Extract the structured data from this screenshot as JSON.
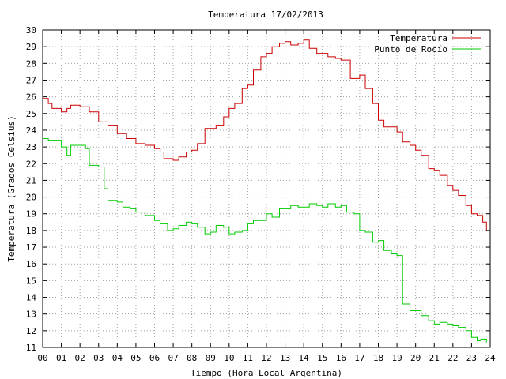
{
  "chart_data": {
    "type": "line",
    "title": "Temperatura 17/02/2013",
    "xlabel": "Tiempo (Hora Local Argentina)",
    "ylabel": "Temperatura (Grados Celsius)",
    "xlim": [
      0,
      24
    ],
    "ylim": [
      11,
      30
    ],
    "x_ticks": [
      "00",
      "01",
      "02",
      "03",
      "04",
      "05",
      "06",
      "07",
      "08",
      "09",
      "10",
      "11",
      "12",
      "13",
      "14",
      "15",
      "16",
      "17",
      "18",
      "19",
      "20",
      "21",
      "22",
      "23",
      "24"
    ],
    "y_ticks": [
      "11",
      "12",
      "13",
      "14",
      "15",
      "16",
      "17",
      "18",
      "19",
      "20",
      "21",
      "22",
      "23",
      "24",
      "25",
      "26",
      "27",
      "28",
      "29",
      "30"
    ],
    "grid": true,
    "legend_position": "top-right",
    "series": [
      {
        "name": "Temperatura",
        "color": "#cc0000",
        "x": [
          0,
          0.3,
          0.5,
          1.0,
          1.3,
          1.5,
          2.0,
          2.5,
          3.0,
          3.3,
          3.5,
          4.0,
          4.5,
          5.0,
          5.5,
          6.0,
          6.3,
          6.5,
          7.0,
          7.3,
          7.7,
          8.0,
          8.3,
          8.7,
          9.0,
          9.3,
          9.7,
          10.0,
          10.3,
          10.7,
          11.0,
          11.3,
          11.7,
          12.0,
          12.3,
          12.7,
          13.0,
          13.3,
          13.7,
          14.0,
          14.3,
          14.7,
          15.0,
          15.3,
          15.7,
          16.0,
          16.3,
          16.5,
          16.7,
          17.0,
          17.3,
          17.7,
          18.0,
          18.3,
          18.7,
          19.0,
          19.3,
          19.7,
          20.0,
          20.3,
          20.7,
          21.0,
          21.3,
          21.7,
          22.0,
          22.3,
          22.7,
          23.0,
          23.3,
          23.6,
          23.8
        ],
        "values": [
          25.9,
          25.6,
          25.3,
          25.1,
          25.3,
          25.5,
          25.4,
          25.1,
          24.5,
          24.5,
          24.3,
          23.8,
          23.5,
          23.2,
          23.1,
          22.9,
          22.7,
          22.3,
          22.2,
          22.4,
          22.7,
          22.8,
          23.2,
          24.1,
          24.1,
          24.3,
          24.8,
          25.3,
          25.6,
          26.5,
          26.7,
          27.6,
          28.4,
          28.6,
          29.0,
          29.2,
          29.3,
          29.1,
          29.2,
          29.4,
          28.9,
          28.6,
          28.6,
          28.4,
          28.3,
          28.2,
          28.2,
          27.1,
          27.1,
          27.3,
          26.5,
          25.6,
          24.6,
          24.2,
          24.2,
          23.9,
          23.3,
          23.1,
          22.8,
          22.5,
          21.7,
          21.6,
          21.3,
          20.7,
          20.4,
          20.1,
          19.5,
          19.0,
          18.9,
          18.5,
          18.0
        ]
      },
      {
        "name": "Punto de Rocío",
        "color": "#00cc00",
        "x": [
          0,
          0.3,
          0.5,
          1.0,
          1.3,
          1.5,
          2.0,
          2.3,
          2.5,
          3.0,
          3.3,
          3.5,
          4.0,
          4.3,
          4.7,
          5.0,
          5.5,
          6.0,
          6.3,
          6.7,
          7.0,
          7.3,
          7.7,
          8.0,
          8.3,
          8.7,
          9.0,
          9.3,
          9.7,
          10.0,
          10.3,
          10.7,
          11.0,
          11.3,
          11.7,
          12.0,
          12.3,
          12.7,
          13.0,
          13.3,
          13.7,
          14.0,
          14.3,
          14.7,
          15.0,
          15.3,
          15.7,
          16.0,
          16.3,
          16.7,
          17.0,
          17.3,
          17.7,
          18.0,
          18.3,
          18.7,
          19.0,
          19.3,
          19.7,
          20.0,
          20.3,
          20.7,
          21.0,
          21.3,
          21.7,
          22.0,
          22.3,
          22.7,
          23.0,
          23.3,
          23.5,
          23.8
        ],
        "values": [
          23.5,
          23.4,
          23.4,
          23.0,
          22.5,
          23.1,
          23.1,
          22.9,
          21.9,
          21.8,
          20.5,
          19.8,
          19.7,
          19.4,
          19.3,
          19.1,
          18.9,
          18.6,
          18.4,
          18.0,
          18.1,
          18.3,
          18.5,
          18.4,
          18.2,
          17.8,
          17.9,
          18.3,
          18.2,
          17.8,
          17.9,
          18.0,
          18.4,
          18.6,
          18.6,
          19.0,
          18.8,
          19.3,
          19.3,
          19.5,
          19.4,
          19.4,
          19.6,
          19.5,
          19.4,
          19.6,
          19.4,
          19.5,
          19.1,
          19.0,
          18.0,
          17.9,
          17.3,
          17.4,
          16.8,
          16.6,
          16.5,
          13.6,
          13.2,
          13.2,
          12.9,
          12.6,
          12.4,
          12.5,
          12.4,
          12.3,
          12.2,
          12.0,
          11.6,
          11.4,
          11.5,
          11.3
        ]
      }
    ]
  }
}
